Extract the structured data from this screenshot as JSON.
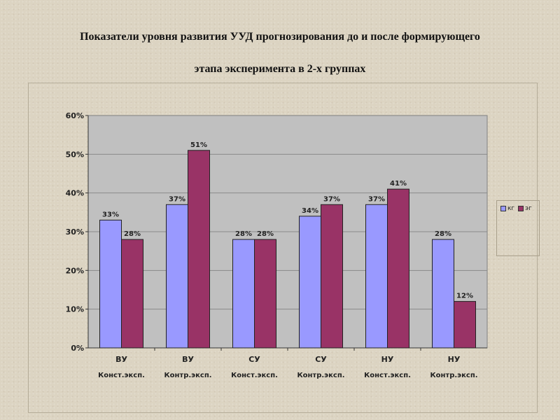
{
  "title_line1": "Показатели уровня развития УУД прогнозирования до и после формирующего",
  "title_line2": "этапа эксперимента в 2-х группах",
  "colors": {
    "kg": "#9999ff",
    "eg": "#993366",
    "plot_bg": "#c0c0c0",
    "grid": "#8a8a8a"
  },
  "chart_data": {
    "type": "bar",
    "title": "",
    "xlabel": "",
    "ylabel": "",
    "ylim": [
      0,
      60
    ],
    "yticks": [
      "0%",
      "10%",
      "20%",
      "30%",
      "40%",
      "50%",
      "60%"
    ],
    "grid": true,
    "legend_position": "right",
    "categories": [
      [
        "ВУ",
        "Конст.эксп."
      ],
      [
        "ВУ",
        "Контр.эксп."
      ],
      [
        "СУ",
        "Конст.эксп."
      ],
      [
        "СУ",
        "Контр.эксп."
      ],
      [
        "НУ",
        "Конст.эксп."
      ],
      [
        "НУ",
        "Контр.эксп."
      ]
    ],
    "series": [
      {
        "name": "кг",
        "color": "#9999ff",
        "values": [
          33,
          37,
          28,
          34,
          37,
          28
        ],
        "labels": [
          "33%",
          "37%",
          "28%",
          "34%",
          "37%",
          "28%"
        ]
      },
      {
        "name": "эг",
        "color": "#993366",
        "values": [
          28,
          51,
          28,
          37,
          41,
          12
        ],
        "labels": [
          "28%",
          "51%",
          "28%",
          "37%",
          "41%",
          "12%"
        ]
      }
    ]
  }
}
